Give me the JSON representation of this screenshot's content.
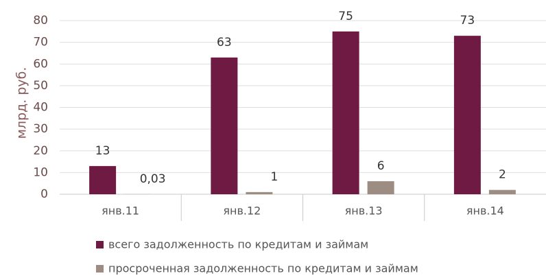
{
  "chart_data": {
    "type": "bar",
    "y_label": "млрд. руб.",
    "categories": [
      "янв.11",
      "янв.12",
      "янв.13",
      "янв.14"
    ],
    "series": [
      {
        "name": "всего задолженность по кредитам и займам",
        "color": "#6e1a43",
        "values": [
          13,
          63,
          75,
          73
        ]
      },
      {
        "name": "просроченная задолженность по кредитам и займам",
        "color": "#9c8c82",
        "values": [
          0.03,
          1,
          6,
          2
        ],
        "value_labels": [
          "0,03",
          "1",
          "6",
          "2"
        ]
      }
    ],
    "ylim": [
      0,
      80
    ],
    "yticks": [
      0,
      10,
      20,
      30,
      40,
      50,
      60,
      70,
      80
    ],
    "grid": true,
    "legend": "bottom"
  }
}
